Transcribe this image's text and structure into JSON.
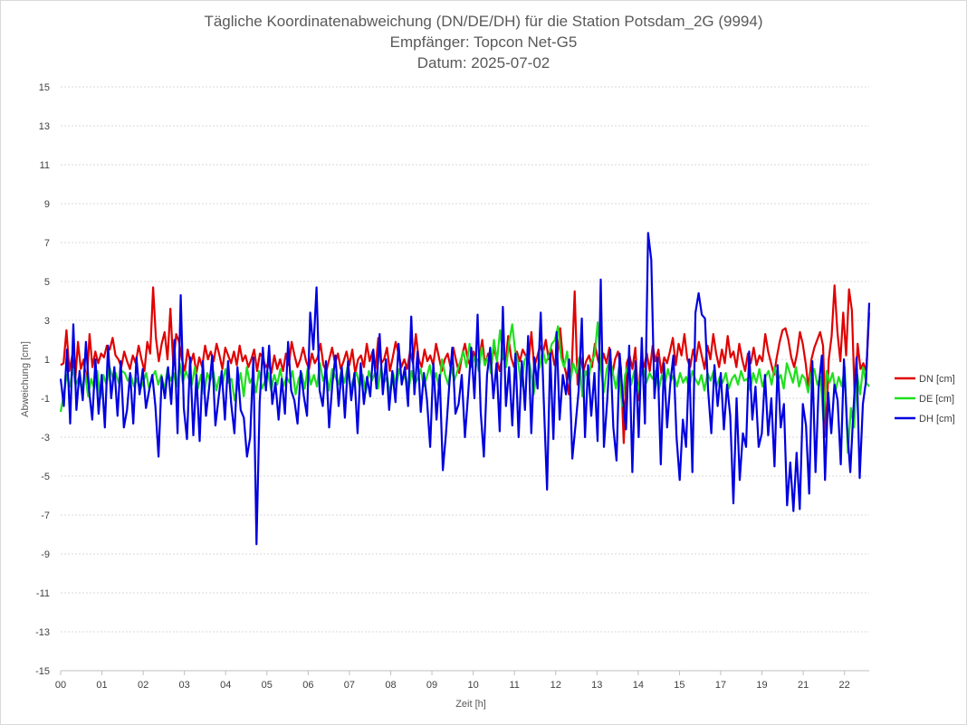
{
  "chart_data": {
    "type": "line",
    "title_lines": [
      "Tägliche Koordinatenabweichung (DN/DE/DH) für die Station Potsdam_2G (9994)",
      "Empfänger: Topcon Net-G5",
      "Datum: 2025-07-02"
    ],
    "xlabel": "Zeit [h]",
    "ylabel": "Abweichung [cm]",
    "ylim": [
      -15,
      15
    ],
    "xlim": [
      0,
      19.6
    ],
    "y_ticks": [
      15,
      13,
      11,
      9,
      7,
      5,
      3,
      1,
      -1,
      -3,
      -5,
      -7,
      -9,
      -11,
      -13,
      -15
    ],
    "x_ticks": [
      "00",
      "01",
      "02",
      "03",
      "04",
      "05",
      "06",
      "07",
      "08",
      "09",
      "10",
      "11",
      "12",
      "13",
      "14",
      "15",
      "17",
      "19",
      "21",
      "22"
    ],
    "grid": true,
    "legend_position": "right",
    "series": [
      {
        "name": "DN [cm]",
        "color": "#e00000",
        "values": [
          0.7,
          0.8,
          2.5,
          0.4,
          1.2,
          -0.2,
          1.9,
          0.5,
          1.0,
          -0.3,
          2.3,
          0.6,
          1.4,
          0.8,
          1.3,
          1.1,
          1.7,
          1.5,
          2.1,
          1.2,
          1.0,
          0.6,
          1.4,
          0.9,
          0.5,
          1.2,
          0.8,
          1.7,
          1.0,
          0.4,
          1.9,
          1.3,
          4.7,
          2.1,
          0.9,
          1.8,
          2.4,
          1.0,
          3.6,
          0.7,
          2.3,
          1.9,
          1.0,
          0.4,
          1.5,
          0.8,
          1.3,
          0.3,
          1.1,
          0.6,
          1.7,
          1.0,
          1.4,
          0.9,
          1.8,
          1.2,
          0.5,
          1.6,
          1.2,
          0.8,
          1.4,
          0.7,
          1.7,
          0.9,
          1.2,
          0.6,
          1.0,
          1.5,
          0.4,
          1.3,
          1.1,
          0.6,
          0.8,
          0.3,
          1.2,
          0.5,
          1.0,
          0.4,
          1.3,
          0.7,
          1.9,
          1.2,
          0.6,
          1.0,
          1.6,
          0.9,
          0.5,
          1.3,
          0.8,
          1.1,
          1.8,
          0.7,
          0.4,
          1.0,
          1.6,
          0.8,
          1.3,
          0.5,
          0.9,
          1.4,
          0.7,
          1.5,
          0.3,
          1.0,
          1.2,
          0.6,
          1.8,
          0.9,
          1.4,
          0.5,
          2.1,
          0.8,
          1.0,
          1.6,
          0.4,
          1.1,
          1.9,
          1.3,
          0.6,
          1.0,
          0.5,
          1.4,
          0.8,
          2.3,
          1.0,
          0.6,
          1.5,
          0.9,
          1.2,
          0.7,
          1.8,
          1.1,
          0.4,
          1.0,
          1.3,
          0.6,
          1.6,
          0.9,
          0.3,
          1.2,
          1.8,
          1.0,
          0.6,
          1.4,
          0.8,
          1.1,
          2.0,
          0.7,
          1.3,
          0.5,
          1.6,
          1.0,
          0.4,
          1.2,
          0.8,
          2.2,
          1.1,
          0.6,
          1.4,
          0.9,
          1.5,
          1.2,
          0.8,
          2.4,
          0.6,
          1.1,
          1.7,
          1.3,
          2.0,
          1.0,
          1.5,
          0.7,
          1.2,
          2.6,
          0.9,
          0.3,
          -0.8,
          0.6,
          4.5,
          -0.3,
          1.1,
          0.4,
          0.9,
          1.2,
          0.6,
          1.8,
          1.0,
          0.5,
          1.3,
          0.8,
          1.6,
          0.2,
          1.0,
          1.4,
          0.6,
          -3.3,
          0.8,
          1.2,
          0.5,
          1.6,
          -1.1,
          1.0,
          0.6,
          1.3,
          0.4,
          1.7,
          0.9,
          1.5,
          0.3,
          1.1,
          0.8,
          1.4,
          2.1,
          0.7,
          1.8,
          1.2,
          2.3,
          1.0,
          0.6,
          1.5,
          0.9,
          1.9,
          1.2,
          0.5,
          1.7,
          1.0,
          2.3,
          1.3,
          0.6,
          1.5,
          0.8,
          2.2,
          1.1,
          1.4,
          0.6,
          1.8,
          1.0,
          0.4,
          1.3,
          0.8,
          1.6,
          0.7,
          1.2,
          0.9,
          2.3,
          1.4,
          0.8,
          0.2,
          1.1,
          1.9,
          2.5,
          2.6,
          2.0,
          1.1,
          0.6,
          1.3,
          2.4,
          1.8,
          0.8,
          -0.5,
          1.0,
          1.6,
          2.0,
          2.4,
          1.7,
          -3.0,
          1.0,
          2.2,
          4.8,
          2.4,
          0.9,
          3.4,
          1.2,
          4.6,
          3.5,
          -1.2,
          1.8,
          0.5,
          0.8,
          0.4,
          3.4
        ]
      },
      {
        "name": "DE [cm]",
        "color": "#1ee01e",
        "values": [
          -1.7,
          -0.8,
          0.2,
          -0.4,
          0.5,
          -0.3,
          0.1,
          -0.6,
          0.3,
          -0.9,
          0.0,
          -0.5,
          0.4,
          -1.0,
          0.2,
          -0.3,
          0.6,
          0.1,
          0.3,
          -0.2,
          0.4,
          0.3,
          -0.1,
          0.2,
          -0.4,
          0.0,
          -0.6,
          -0.2,
          0.3,
          -0.5,
          0.1,
          0.4,
          -0.3,
          0.2,
          -0.6,
          0.5,
          -0.1,
          0.3,
          -0.4,
          0.8,
          -0.2,
          0.4,
          0.0,
          -0.3,
          0.6,
          -0.5,
          0.2,
          -0.8,
          0.3,
          -0.1,
          0.4,
          -0.6,
          0.1,
          -0.3,
          0.5,
          -0.2,
          0.0,
          -1.1,
          -0.4,
          0.3,
          -0.9,
          0.6,
          -0.2,
          0.1,
          -0.7,
          0.4,
          -0.5,
          -0.1,
          0.3,
          -0.6,
          0.2,
          -0.3,
          0.5,
          -0.4,
          0.1,
          -0.2,
          0.4,
          -0.8,
          0.0,
          0.3,
          -0.5,
          0.6,
          -0.3,
          0.2,
          -0.4,
          0.8,
          -0.1,
          0.3,
          -0.6,
          0.5,
          0.1,
          -0.3,
          0.4,
          -0.2,
          0.6,
          -0.5,
          0.0,
          0.3,
          -0.4,
          0.2,
          -0.7,
          0.4,
          -0.1,
          0.3,
          -0.5,
          0.6,
          -0.2,
          0.1,
          -0.8,
          0.3,
          -0.4,
          0.5,
          -0.1,
          0.2,
          -0.6,
          0.4,
          -0.3,
          0.0,
          0.5,
          -0.4,
          0.1,
          0.7,
          -0.2,
          0.3,
          -0.5,
          1.0,
          0.2,
          -0.3,
          0.6,
          -0.1,
          0.4,
          0.9,
          1.4,
          0.6,
          1.8,
          0.8,
          1.2,
          0.4,
          1.6,
          0.7,
          1.1,
          0.3,
          2.0,
          0.9,
          2.5,
          1.2,
          0.6,
          1.9,
          2.8,
          1.4,
          0.8,
          -0.4,
          0.9,
          1.3,
          0.5,
          -0.8,
          0.2,
          0.6,
          1.5,
          0.8,
          1.2,
          1.8,
          2.0,
          2.7,
          1.1,
          0.6,
          1.4,
          -0.2,
          0.8,
          0.3,
          1.1,
          -0.9,
          0.4,
          0.0,
          0.9,
          1.2,
          2.9,
          0.6,
          -0.7,
          0.5,
          1.0,
          0.3,
          -0.5,
          0.6,
          -1.4,
          0.2,
          0.7,
          -0.3,
          0.4,
          -0.8,
          0.1,
          0.5,
          -0.2,
          0.3,
          0.0,
          0.4,
          -0.6,
          0.2,
          -0.3,
          0.5,
          -0.1,
          0.2,
          -0.4,
          0.3,
          -0.2,
          0.1,
          -0.5,
          0.4,
          0.0,
          -0.3,
          0.2,
          -0.6,
          0.3,
          -0.1,
          0.4,
          -0.4,
          0.1,
          -0.2,
          0.3,
          -0.5,
          0.0,
          0.2,
          -0.3,
          0.4,
          -0.1,
          0.0,
          -0.6,
          0.3,
          -0.2,
          0.5,
          -0.4,
          0.1,
          0.4,
          -0.3,
          0.6,
          -0.1,
          0.2,
          -0.5,
          0.8,
          0.3,
          -0.2,
          0.6,
          -0.4,
          0.2,
          0.0,
          -0.7,
          0.3,
          0.5,
          -0.3,
          0.1,
          -2.2,
          0.4,
          -0.2,
          0.3,
          -0.6,
          0.1,
          -0.4,
          0.6,
          -3.8,
          -1.5,
          -2.5,
          0.3,
          -0.8,
          0.6,
          -0.2,
          -0.4
        ]
      },
      {
        "name": "DH [cm]",
        "color": "#0000e0",
        "values": [
          0.0,
          -1.4,
          1.5,
          -2.3,
          2.8,
          -1.6,
          0.4,
          -1.1,
          1.9,
          -0.6,
          -2.1,
          1.0,
          -1.8,
          0.2,
          -2.5,
          1.7,
          -1.0,
          0.6,
          -1.9,
          0.9,
          -2.5,
          -1.6,
          0.3,
          -2.3,
          1.1,
          -0.8,
          0.5,
          -1.5,
          -0.6,
          0.2,
          -1.4,
          -4.0,
          0.1,
          -1.0,
          0.6,
          -1.3,
          2.0,
          -2.8,
          4.3,
          -1.5,
          -3.1,
          1.1,
          -2.9,
          0.2,
          -3.2,
          0.9,
          -1.9,
          -0.5,
          1.2,
          -2.4,
          -1.0,
          0.4,
          -2.1,
          0.9,
          -1.3,
          -2.8,
          0.6,
          -1.6,
          -2.0,
          -4.0,
          -3.0,
          1.1,
          -8.5,
          -1.2,
          1.6,
          -0.6,
          1.7,
          -1.3,
          -0.2,
          -2.1,
          0.0,
          -1.8,
          1.9,
          -0.6,
          -1.1,
          -2.3,
          0.4,
          -0.9,
          -1.9,
          3.4,
          1.5,
          4.7,
          -0.6,
          -1.4,
          0.9,
          -2.5,
          -0.3,
          1.2,
          -1.4,
          0.6,
          -2.0,
          0.9,
          -1.1,
          0.3,
          -2.8,
          0.8,
          -1.3,
          0.1,
          -0.9,
          1.5,
          -0.5,
          2.3,
          -0.8,
          1.0,
          -1.6,
          0.4,
          -1.2,
          1.8,
          -0.3,
          0.6,
          -1.4,
          3.2,
          -0.8,
          1.4,
          -1.7,
          0.3,
          -1.1,
          -3.5,
          0.8,
          -2.1,
          0.2,
          -4.7,
          -2.8,
          -0.4,
          1.6,
          -1.8,
          -1.3,
          0.2,
          -3.0,
          -0.8,
          1.6,
          -1.0,
          3.3,
          -1.7,
          -4.0,
          0.2,
          1.6,
          -1.0,
          0.8,
          -2.7,
          3.7,
          -1.4,
          0.6,
          -2.4,
          1.3,
          -3.0,
          0.9,
          -1.6,
          2.2,
          -2.8,
          1.1,
          -0.5,
          3.4,
          -1.3,
          -5.7,
          1.3,
          -3.1,
          2.4,
          -2.1,
          0.2,
          -0.8,
          1.0,
          -4.1,
          -2.4,
          -0.6,
          3.1,
          -3.0,
          0.7,
          -1.9,
          0.3,
          -3.2,
          5.1,
          -3.5,
          -1.2,
          1.5,
          -2.5,
          -4.2,
          1.3,
          -1.0,
          -2.6,
          1.7,
          -4.8,
          0.9,
          -3.0,
          2.1,
          -2.3,
          7.5,
          6.1,
          -1.0,
          1.1,
          -4.4,
          0.8,
          -2.5,
          -0.3,
          1.2,
          -3.0,
          -5.2,
          -2.1,
          -3.5,
          1.0,
          -4.8,
          3.4,
          4.4,
          3.3,
          3.1,
          -0.6,
          -2.8,
          0.7,
          -1.4,
          0.3,
          -2.6,
          -0.3,
          -1.9,
          -6.4,
          -1.0,
          -5.2,
          -2.8,
          -3.5,
          1.4,
          -2.1,
          -0.4,
          -3.5,
          -2.8,
          0.2,
          -2.9,
          -1.0,
          -4.5,
          0.7,
          -2.5,
          -1.3,
          -6.5,
          -4.3,
          -6.8,
          -3.8,
          -6.7,
          -1.3,
          -2.4,
          -5.9,
          0.9,
          -4.8,
          -0.4,
          1.2,
          -5.2,
          -0.7,
          -2.8,
          -0.3,
          -1.1,
          -4.4,
          1.0,
          -2.5,
          -4.8,
          -1.6,
          1.1,
          -5.1,
          -1.3,
          -0.1,
          3.9
        ]
      }
    ]
  }
}
